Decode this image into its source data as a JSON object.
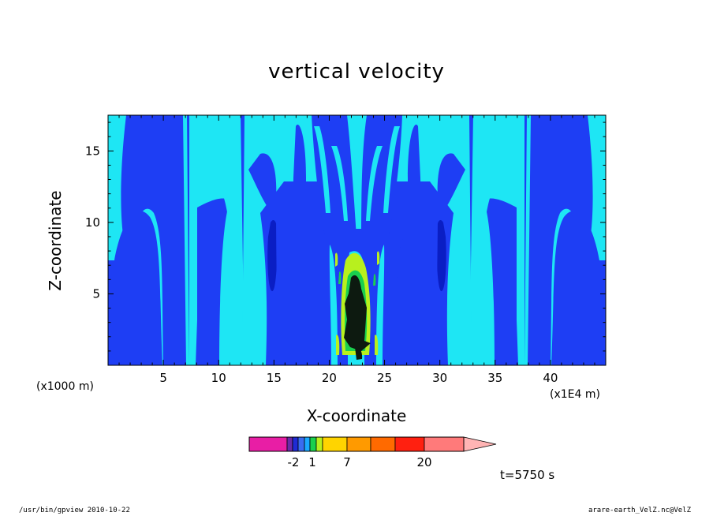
{
  "chart_data": {
    "type": "contour",
    "title": "vertical velocity",
    "xlabel": "X-coordinate",
    "ylabel": "Z-coordinate",
    "x_unit_note": "(x1000 m)",
    "x_scale_note": "(x1E4 m)",
    "xlim": [
      0,
      45
    ],
    "ylim": [
      0,
      17.5
    ],
    "x_ticks": [
      5,
      10,
      15,
      20,
      25,
      30,
      35,
      40
    ],
    "y_ticks": [
      5,
      10,
      15
    ],
    "colorbar": {
      "tick_labels": [
        "-2",
        "1",
        "7",
        "20"
      ],
      "colors": [
        "#e81ea5",
        "#e81ea5",
        "#6a2aa9",
        "#1f2bd4",
        "#3a6cf0",
        "#19a9ff",
        "#1ad04e",
        "#b8f01e",
        "#ffd400",
        "#ffc000",
        "#ff9a00",
        "#ff6a00",
        "#ff2010",
        "#ff7a7a",
        "#ffb4b4"
      ]
    }
  },
  "annotations": {
    "timestamp": "t=5750 s",
    "footer_left": "/usr/bin/gpview  2010-10-22",
    "footer_right": "arare-earth_VelZ.nc@VelZ"
  },
  "colors": {
    "light": "#1ee6f4",
    "mid": "#1e3ef4",
    "dark": "#0a1ec4"
  }
}
